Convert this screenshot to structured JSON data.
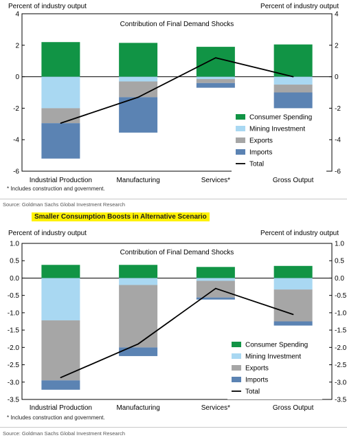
{
  "colors": {
    "Consumer Spending": "#119445",
    "Mining Investment": "#a9d8f2",
    "Exports": "#a6a6a6",
    "Imports": "#5b83b3",
    "Total": "#000000"
  },
  "chart_data": [
    {
      "type": "bar",
      "stacked": true,
      "title": "Contribution of Final Demand Shocks",
      "ylabel_left": "Percent of industry output",
      "ylabel_right": "Percent of industry output",
      "categories": [
        "Industrial Production",
        "Manufacturing",
        "Services*",
        "Gross Output"
      ],
      "ylim": [
        -6,
        4
      ],
      "yticks": [
        -6,
        -4,
        -2,
        0,
        2,
        4
      ],
      "ytick_labels": [
        "-6",
        "-4",
        "-2",
        "0",
        "2",
        "4"
      ],
      "series": [
        {
          "name": "Consumer Spending",
          "values": [
            2.2,
            2.15,
            1.9,
            2.05
          ]
        },
        {
          "name": "Mining Investment",
          "values": [
            -2.0,
            -0.3,
            -0.15,
            -0.5
          ]
        },
        {
          "name": "Exports",
          "values": [
            -0.95,
            -1.0,
            -0.25,
            -0.5
          ]
        },
        {
          "name": "Imports",
          "values": [
            -2.25,
            -2.25,
            -0.3,
            -1.0
          ]
        }
      ],
      "line": {
        "name": "Total",
        "values": [
          -2.95,
          -1.3,
          1.2,
          0.0
        ]
      },
      "legend": "bottom-right",
      "footnote": "* Includes construction and government.",
      "source": "Source: Goldman Sachs Global Investment Research"
    },
    {
      "type": "bar",
      "stacked": true,
      "heading": "Smaller Consumption Boosts in Alternative Scenario",
      "title": "Contribution of Final Demand Shocks",
      "ylabel_left": "Percent of industry output",
      "ylabel_right": "Percent of industry output",
      "categories": [
        "Industrial Production",
        "Manufacturing",
        "Services*",
        "Gross Output"
      ],
      "ylim": [
        -3.5,
        1.0
      ],
      "yticks": [
        -3.5,
        -3.0,
        -2.5,
        -2.0,
        -1.5,
        -1.0,
        -0.5,
        0.0,
        0.5,
        1.0
      ],
      "ytick_labels": [
        "-3.5",
        "-3.0",
        "-2.5",
        "-2.0",
        "-1.5",
        "-1.0",
        "-0.5",
        "0.0",
        "0.5",
        "1.0"
      ],
      "series": [
        {
          "name": "Consumer Spending",
          "values": [
            0.38,
            0.38,
            0.32,
            0.35
          ]
        },
        {
          "name": "Mining Investment",
          "values": [
            -1.22,
            -0.2,
            -0.08,
            -0.33
          ]
        },
        {
          "name": "Exports",
          "values": [
            -1.73,
            -1.8,
            -0.48,
            -0.92
          ]
        },
        {
          "name": "Imports",
          "values": [
            -0.27,
            -0.25,
            -0.06,
            -0.12
          ]
        }
      ],
      "line": {
        "name": "Total",
        "values": [
          -2.87,
          -1.9,
          -0.3,
          -1.05
        ]
      },
      "legend": "bottom-right",
      "footnote": "* Includes construction and government.",
      "source": "Source: Goldman Sachs Global Investment Research"
    }
  ]
}
